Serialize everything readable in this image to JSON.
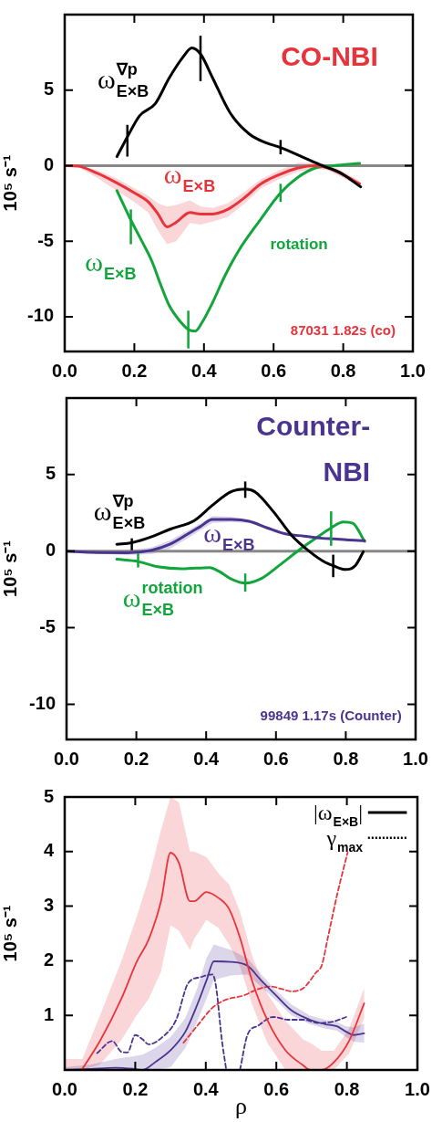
{
  "chart_data": [
    {
      "type": "line",
      "title": "CO-NBI",
      "ylabel": "10⁵ s⁻¹",
      "xlim": [
        0,
        1
      ],
      "ylim": [
        -12.3,
        10
      ],
      "xticks": [
        {
          "value": 0,
          "label": "0.0"
        },
        {
          "value": 0.2,
          "label": "0.2"
        },
        {
          "value": 0.4,
          "label": "0.4"
        },
        {
          "value": 0.6,
          "label": "0.6"
        },
        {
          "value": 0.8,
          "label": "0.8"
        },
        {
          "value": 1,
          "label": "1.0"
        }
      ],
      "yticks": [
        -10,
        -5,
        0,
        5
      ],
      "ref_lines": [
        {
          "axis": "y",
          "value": 0,
          "color": "#888888"
        }
      ],
      "annotations": [
        "rotation",
        "87031 1.82s (co)"
      ],
      "series": [
        {
          "name": "ω$^{∇p}$$_{E×B}$",
          "color": "#000000",
          "x": [
            0.15,
            0.18,
            0.215,
            0.26,
            0.3,
            0.34,
            0.365,
            0.39,
            0.425,
            0.475,
            0.53,
            0.58,
            0.62,
            0.685,
            0.74,
            0.79,
            0.85
          ],
          "values": [
            0.6,
            1.9,
            3.3,
            4.1,
            5.8,
            7.2,
            7.8,
            7.4,
            5.8,
            3.5,
            2.1,
            1.5,
            1.2,
            0.55,
            0,
            -0.45,
            -1.4
          ],
          "errors": [
            null,
            [
              0.6,
              2.7
            ],
            null,
            null,
            null,
            null,
            null,
            [
              5.6,
              8.6
            ],
            null,
            null,
            null,
            null,
            [
              0.75,
              1.7
            ],
            null,
            null,
            null,
            null
          ]
        },
        {
          "name": "ω$_{E×B}$",
          "color": "#e8333a",
          "x": [
            0,
            0.04,
            0.093,
            0.146,
            0.2,
            0.24,
            0.268,
            0.294,
            0.32,
            0.36,
            0.39,
            0.425,
            0.468,
            0.512,
            0.564,
            0.616,
            0.67,
            0.72,
            0.756,
            0.8,
            0.847
          ],
          "values": [
            0,
            -0.04,
            -0.5,
            -1.1,
            -1.8,
            -2.4,
            -3.2,
            -4.05,
            -3.75,
            -3.1,
            -3.2,
            -3.2,
            -2.9,
            -2.2,
            -1.2,
            -0.6,
            -0.15,
            0,
            -0.15,
            -0.6,
            -1.2
          ],
          "lower": [
            0,
            -0.1,
            -0.8,
            -1.6,
            -2.4,
            -3.1,
            -4.3,
            -5.2,
            -5,
            -3.8,
            -3.9,
            -3.7,
            -3.4,
            -2.6,
            -1.5,
            -0.9,
            -0.4,
            -0.2,
            -0.3,
            -0.8,
            -1.4
          ],
          "upper": [
            0,
            0,
            -0.3,
            -0.8,
            -1.5,
            -2,
            -2.5,
            -2.7,
            -2.6,
            -2.3,
            -2.7,
            -2.8,
            -2.5,
            -1.8,
            -0.9,
            -0.3,
            0.2,
            0.2,
            0.1,
            -0.4,
            -1
          ]
        },
        {
          "name": "ω$_{E×B}$",
          "color": "#11a53c",
          "x": [
            0.15,
            0.19,
            0.224,
            0.25,
            0.276,
            0.3,
            0.335,
            0.355,
            0.375,
            0.394,
            0.425,
            0.46,
            0.503,
            0.555,
            0.62,
            0.668,
            0.72,
            0.773,
            0.847
          ],
          "values": [
            -1.65,
            -3.6,
            -5.1,
            -6.3,
            -7.9,
            -9.25,
            -10.4,
            -10.85,
            -10.95,
            -10.4,
            -9.05,
            -7.3,
            -5.5,
            -3.8,
            -1.8,
            -0.8,
            -0.15,
            0,
            0.15
          ],
          "errors": [
            null,
            [
              -5.2,
              -2.9
            ],
            null,
            null,
            null,
            null,
            null,
            [
              -12.1,
              -9.6
            ],
            null,
            null,
            null,
            null,
            null,
            null,
            [
              -2.4,
              -1.2
            ],
            null,
            null,
            null,
            null
          ]
        }
      ]
    },
    {
      "type": "line",
      "title": "Counter-\nNBI",
      "ylabel": "10⁵ s⁻¹",
      "xlim": [
        0,
        1
      ],
      "ylim": [
        -12.3,
        10
      ],
      "xticks": [
        {
          "value": 0,
          "label": "0.0"
        },
        {
          "value": 0.2,
          "label": "0.2"
        },
        {
          "value": 0.4,
          "label": "0.4"
        },
        {
          "value": 0.6,
          "label": "0.6"
        },
        {
          "value": 0.8,
          "label": "0.8"
        },
        {
          "value": 1,
          "label": "1.0"
        }
      ],
      "yticks": [
        -10,
        -5,
        0,
        5
      ],
      "ref_lines": [
        {
          "axis": "y",
          "value": 0,
          "color": "#888888"
        }
      ],
      "annotations": [
        "99849 1.17s (Counter)"
      ],
      "series": [
        {
          "name": "ω$^{∇p}$$_{E×B}$",
          "color": "#000000",
          "x": [
            0.144,
            0.187,
            0.244,
            0.296,
            0.366,
            0.418,
            0.47,
            0.512,
            0.54,
            0.592,
            0.645,
            0.697,
            0.74,
            0.764,
            0.8,
            0.828,
            0.85
          ],
          "values": [
            0.45,
            0.55,
            0.94,
            1.43,
            2,
            3,
            3.87,
            4.05,
            3.87,
            2.6,
            1.03,
            -0.04,
            -0.72,
            -0.95,
            -1.2,
            -0.92,
            -0.04
          ],
          "errors": [
            null,
            [
              0.06,
              0.84
            ],
            null,
            null,
            null,
            null,
            null,
            [
              3.48,
              4.55
            ],
            null,
            null,
            null,
            null,
            null,
            [
              -1.7,
              -0.23
            ],
            null,
            null,
            null
          ]
        },
        {
          "name": "ω$_{E×B}$",
          "color": "#4b3490",
          "x": [
            0,
            0.07,
            0.174,
            0.244,
            0.296,
            0.348,
            0.383,
            0.418,
            0.47,
            0.523,
            0.575,
            0.627,
            0.68,
            0.732,
            0.767,
            0.801,
            0.854
          ],
          "values": [
            0,
            -0.08,
            -0.1,
            0.06,
            0.45,
            1.13,
            1.6,
            2.07,
            2.07,
            1.95,
            1.52,
            1.13,
            0.98,
            0.84,
            0.8,
            0.74,
            0.68
          ],
          "lower": [
            -0.05,
            -0.15,
            -0.25,
            -0.2,
            0.15,
            0.85,
            1.35,
            1.85,
            1.9,
            1.85,
            1.44,
            1.06,
            0.91,
            0.78,
            0.74,
            0.68,
            0.62
          ],
          "upper": [
            0.05,
            0.02,
            0.05,
            0.25,
            0.7,
            1.35,
            1.8,
            2.3,
            2.25,
            2.05,
            1.6,
            1.2,
            1.05,
            0.9,
            0.86,
            0.8,
            0.74
          ]
        },
        {
          "name": "ω$^{rotation}$$_{E×B}$",
          "color": "#11a53c",
          "x": [
            0.144,
            0.205,
            0.261,
            0.331,
            0.41,
            0.436,
            0.47,
            0.512,
            0.557,
            0.61,
            0.662,
            0.714,
            0.758,
            0.793,
            0.82,
            0.854
          ],
          "values": [
            -0.53,
            -0.68,
            -1.02,
            -1.15,
            -1.07,
            -1.31,
            -1.8,
            -2.09,
            -1.8,
            -0.92,
            0,
            0.84,
            1.52,
            1.91,
            1.82,
            0.64
          ],
          "errors": [
            null,
            [
              -1.07,
              -0.14
            ],
            null,
            null,
            null,
            null,
            null,
            [
              -2.64,
              -1.46
            ],
            null,
            null,
            null,
            null,
            [
              0.35,
              2.6
            ],
            null,
            null,
            null
          ]
        }
      ]
    },
    {
      "type": "line",
      "xlabel": "ρ",
      "ylabel": "10⁵ s⁻¹",
      "xlim": [
        0,
        1
      ],
      "ylim": [
        0,
        5
      ],
      "xticks": [
        {
          "value": 0,
          "label": "0.0"
        },
        {
          "value": 0.2,
          "label": "0.2"
        },
        {
          "value": 0.4,
          "label": "0.4"
        },
        {
          "value": 0.6,
          "label": "0.6"
        },
        {
          "value": 0.8,
          "label": "0.8"
        },
        {
          "value": 1,
          "label": "1.0"
        }
      ],
      "yticks": [
        1,
        2,
        3,
        4,
        5
      ],
      "annotations": [
        "|ω$_{E×B}$|",
        "γ$_{max}$"
      ],
      "series": [
        {
          "color": "#e8333a",
          "x": [
            0,
            0.05,
            0.1,
            0.161,
            0.204,
            0.238,
            0.273,
            0.3,
            0.324,
            0.355,
            0.367,
            0.402,
            0.436,
            0.466,
            0.497,
            0.531,
            0.574,
            0.626,
            0.677,
            0.695,
            0.729,
            0.763,
            0.806,
            0.849
          ],
          "values": [
            null,
            0.02,
            0.53,
            1.31,
            1.98,
            2.39,
            3.09,
            3.98,
            3.79,
            3.09,
            3.09,
            3.26,
            3.15,
            2.95,
            2.42,
            1.64,
            0.92,
            0.36,
            0.08,
            0,
            0,
            0.14,
            0.53,
            1.22
          ],
          "lower": [
            0,
            0,
            0.1,
            0.55,
            1,
            1.3,
            1.8,
            2.65,
            2.55,
            2.2,
            2.4,
            2.75,
            2.6,
            2.3,
            1.9,
            1.2,
            0.5,
            0,
            0,
            0,
            0,
            0,
            0.3,
            0.95
          ],
          "upper": [
            0.2,
            0.2,
            1,
            2,
            2.8,
            3.5,
            4.4,
            5,
            4.9,
            4,
            4,
            3.9,
            3.6,
            3.4,
            2.9,
            2.1,
            1.4,
            0.9,
            0.55,
            0.5,
            0.35,
            0.35,
            0.75,
            1.5
          ]
        },
        {
          "color": "#4b3490",
          "x": [
            0,
            0.075,
            0.144,
            0.195,
            0.221,
            0.256,
            0.3,
            0.342,
            0.376,
            0.402,
            0.423,
            0.471,
            0.518,
            0.557,
            0.6,
            0.643,
            0.695,
            0.738,
            0.772,
            0.798,
            0.819,
            0.849
          ],
          "values": [
            0,
            0.02,
            0.04,
            0.02,
            0,
            0.14,
            0.36,
            0.7,
            1.2,
            1.64,
            1.99,
            1.98,
            1.91,
            1.64,
            1.36,
            1.09,
            0.92,
            0.84,
            0.8,
            0.7,
            0.64,
            0.67
          ],
          "lower": [
            0,
            0,
            0,
            0,
            0,
            0,
            0.05,
            0.4,
            0.9,
            1.3,
            1.65,
            1.73,
            1.75,
            1.52,
            1.27,
            1,
            0.84,
            0.76,
            0.72,
            0.6,
            0.52,
            0.5
          ],
          "upper": [
            0.05,
            0.1,
            0.2,
            0.25,
            0.28,
            0.4,
            0.6,
            0.95,
            1.5,
            2.05,
            2.3,
            2.2,
            2.05,
            1.75,
            1.45,
            1.2,
            1,
            0.92,
            0.88,
            0.8,
            0.78,
            0.85
          ]
        },
        {
          "color": "#e8333a",
          "line_style": "dashed",
          "x": [
            0.337,
            0.376,
            0.419,
            0.454,
            0.505,
            0.548,
            0.583,
            0.617,
            0.643,
            0.677,
            0.712,
            0.729,
            0.746,
            0.772,
            0.789,
            0.802
          ],
          "values": [
            0.5,
            0.81,
            1.14,
            1.28,
            1.36,
            1.48,
            1.53,
            1.48,
            1.44,
            1.5,
            1.78,
            1.92,
            2.42,
            3.2,
            3.65,
            3.98
          ]
        },
        {
          "color": "#4b3490",
          "line_style": "dashed",
          "x": [
            0.092,
            0.135,
            0.161,
            0.178,
            0.2,
            0.221,
            0.238,
            0.273,
            0.316,
            0.35,
            0.385,
            0.419,
            0.429,
            0.445,
            0.458,
            0.475,
            0.497,
            0.518,
            0.548,
            0.591,
            0.634,
            0.677,
            0.72,
            0.763,
            0.798
          ],
          "values": [
            0.31,
            0.53,
            0.33,
            0.32,
            0.64,
            0.56,
            0.47,
            0.58,
            0.92,
            1.59,
            1.7,
            1.75,
            1.53,
            0.58,
            0,
            null,
            0,
            0.64,
            0.81,
            0.97,
            0.92,
            0.92,
            0.86,
            0.89,
            0.97
          ]
        }
      ]
    }
  ]
}
